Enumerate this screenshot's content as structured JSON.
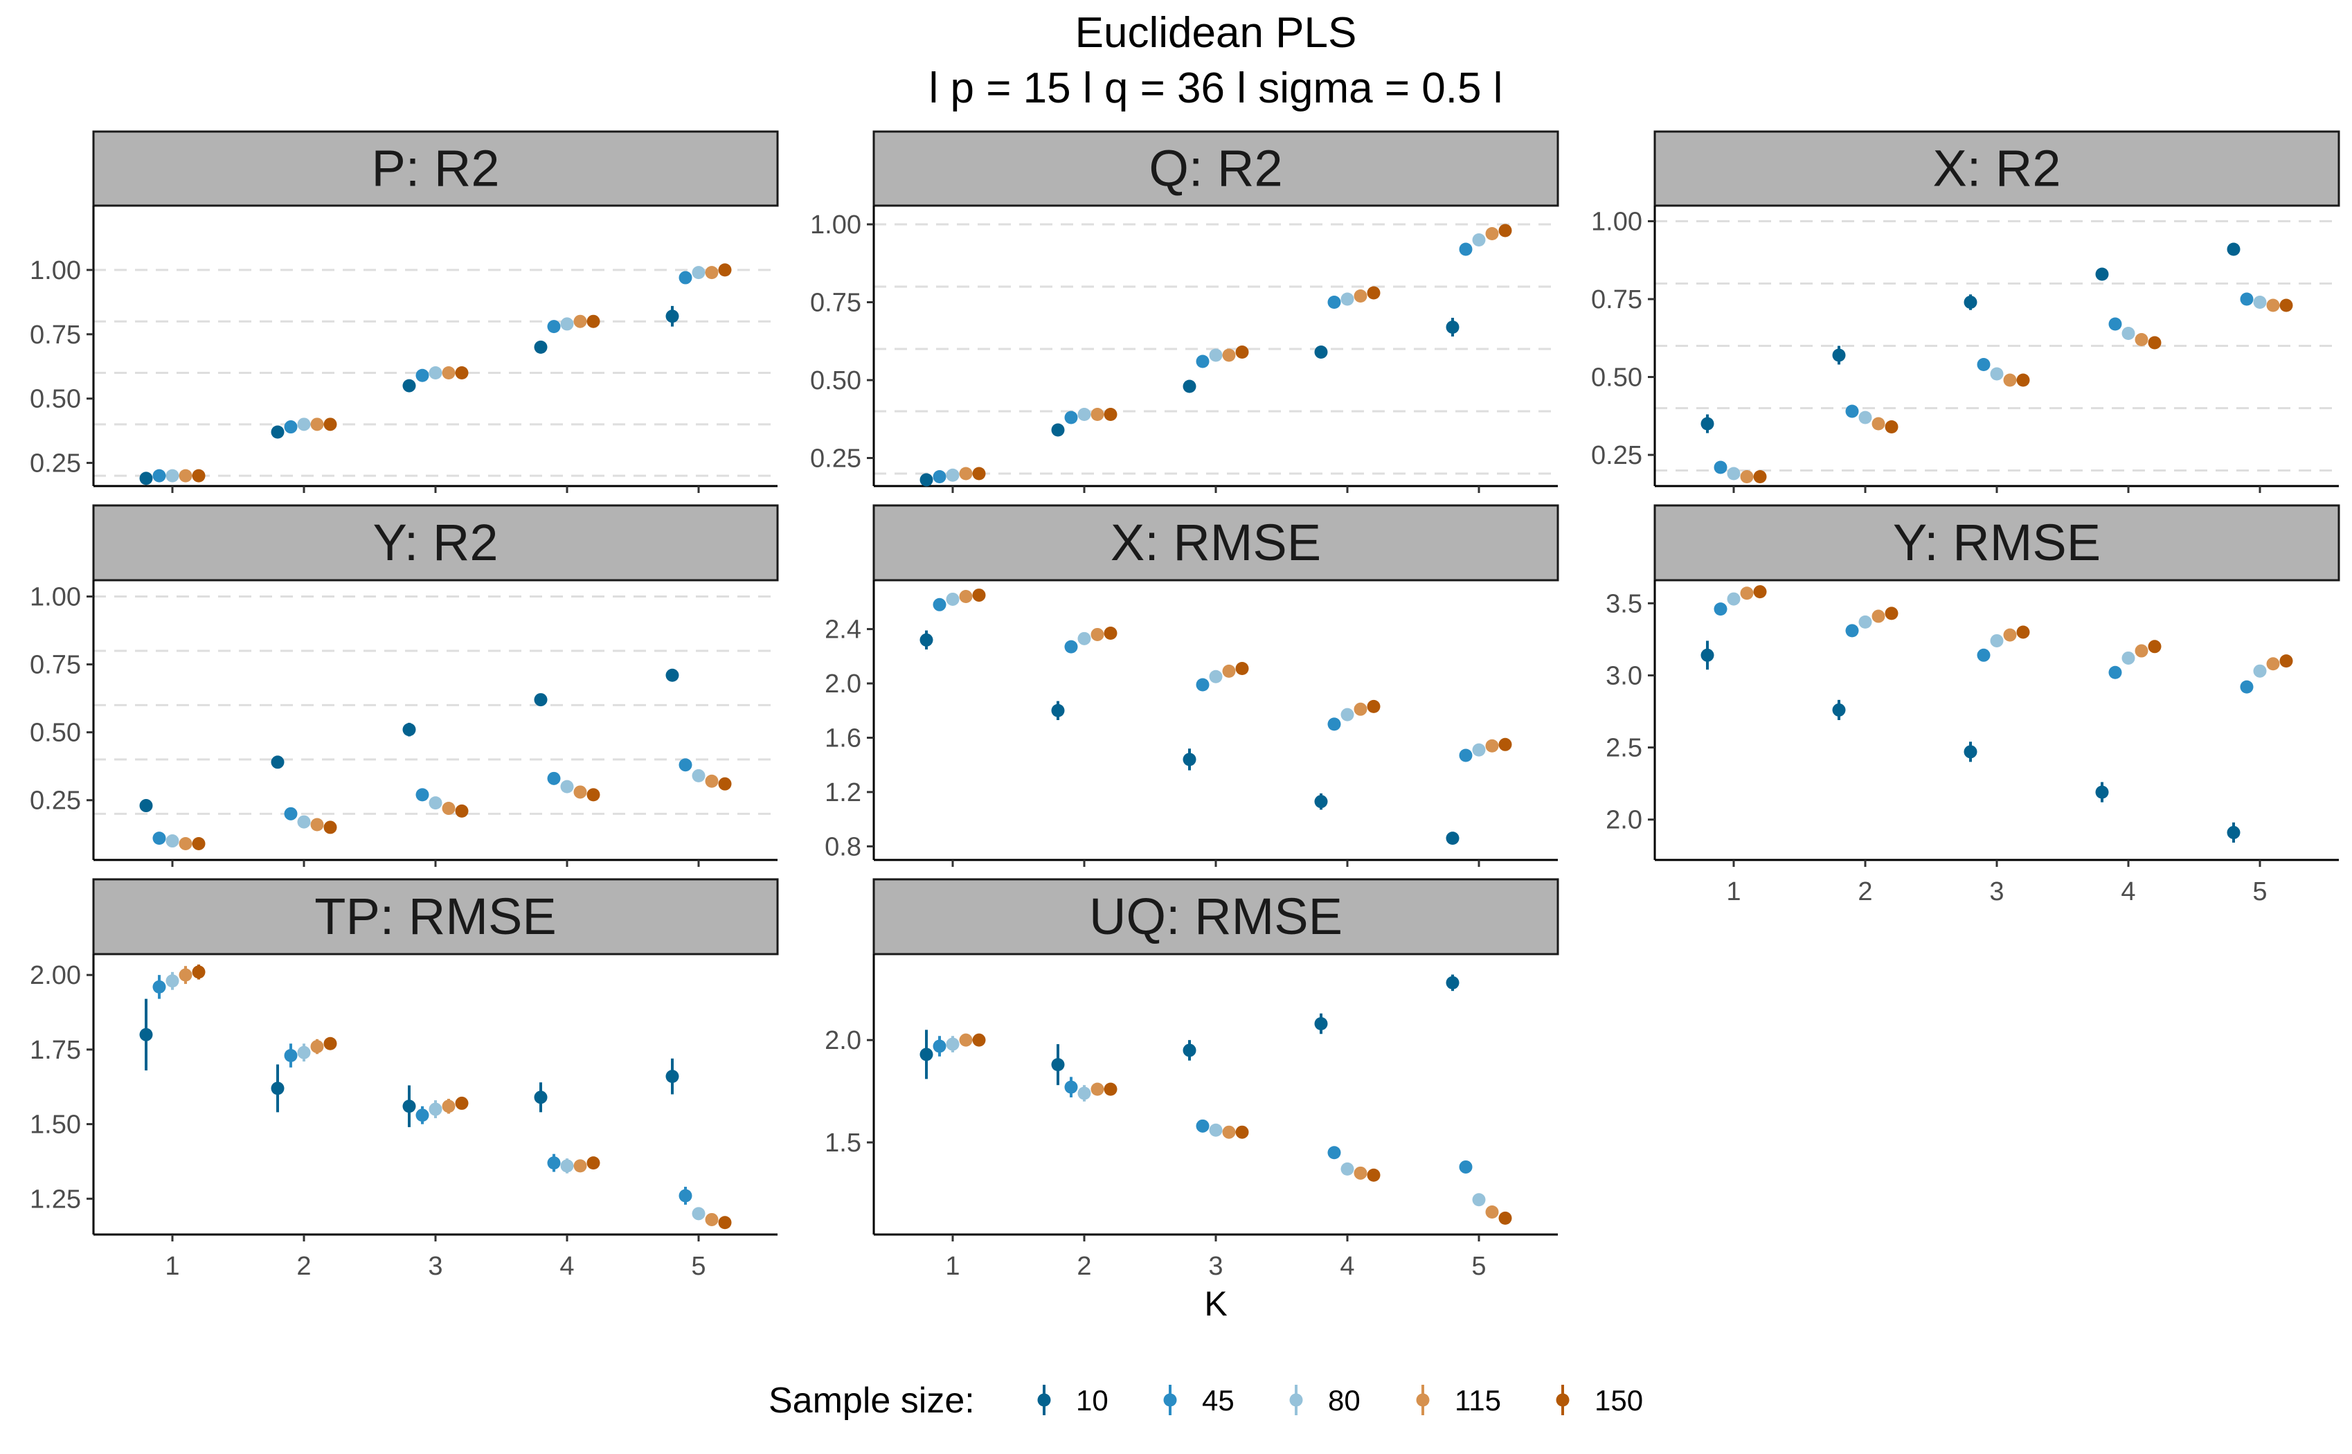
{
  "title": {
    "line1": "Euclidean PLS",
    "line2": "l p = 15 l q = 36 l sigma = 0.5 l"
  },
  "x_axis_label": "K",
  "legend": {
    "title": "Sample size:",
    "items": [
      {
        "label": "10",
        "color": "#03628F"
      },
      {
        "label": "45",
        "color": "#2A8CC4"
      },
      {
        "label": "80",
        "color": "#96C2DA"
      },
      {
        "label": "115",
        "color": "#D6914F"
      },
      {
        "label": "150",
        "color": "#B35806"
      }
    ]
  },
  "chart_data": {
    "type": "scatter",
    "error_bars": true,
    "x_categories": [
      1,
      2,
      3,
      4,
      5
    ],
    "series_names": [
      "10",
      "45",
      "80",
      "115",
      "150"
    ],
    "grid": "dashed horizontal lines at 0.2, 0.4, 0.6, 0.8, 1.0 on R2 panels only",
    "legend_position": "bottom",
    "panels": [
      {
        "title": "P: R2",
        "yticks": [
          "0.25",
          "0.50",
          "0.75",
          "1.00"
        ],
        "ylim": [
          0.16,
          1.25
        ],
        "y": [
          [
            0.19,
            0.2,
            0.2,
            0.2,
            0.2
          ],
          [
            0.37,
            0.39,
            0.4,
            0.4,
            0.4
          ],
          [
            0.55,
            0.59,
            0.6,
            0.6,
            0.6
          ],
          [
            0.7,
            0.78,
            0.79,
            0.8,
            0.8
          ],
          [
            0.82,
            0.97,
            0.99,
            0.99,
            1.0
          ]
        ],
        "err": [
          [
            0.01,
            0,
            0,
            0,
            0
          ],
          [
            0.01,
            0,
            0,
            0,
            0
          ],
          [
            0.01,
            0,
            0,
            0,
            0
          ],
          [
            0.025,
            0,
            0,
            0,
            0
          ],
          [
            0.04,
            0,
            0,
            0,
            0
          ]
        ]
      },
      {
        "title": "Q: R2",
        "yticks": [
          "0.25",
          "0.50",
          "0.75",
          "1.00"
        ],
        "ylim": [
          0.16,
          1.06
        ],
        "y": [
          [
            0.18,
            0.19,
            0.195,
            0.2,
            0.2
          ],
          [
            0.34,
            0.38,
            0.39,
            0.39,
            0.39
          ],
          [
            0.48,
            0.56,
            0.58,
            0.58,
            0.59
          ],
          [
            0.59,
            0.75,
            0.76,
            0.77,
            0.78
          ],
          [
            0.67,
            0.92,
            0.95,
            0.97,
            0.98
          ]
        ],
        "err": [
          [
            0.01,
            0,
            0,
            0,
            0
          ],
          [
            0.01,
            0,
            0,
            0,
            0
          ],
          [
            0.01,
            0,
            0,
            0,
            0
          ],
          [
            0.02,
            0,
            0,
            0,
            0
          ],
          [
            0.03,
            0,
            0,
            0,
            0
          ]
        ]
      },
      {
        "title": "X: R2",
        "yticks": [
          "0.25",
          "0.50",
          "0.75",
          "1.00"
        ],
        "ylim": [
          0.15,
          1.05
        ],
        "y": [
          [
            0.35,
            0.21,
            0.19,
            0.18,
            0.18
          ],
          [
            0.57,
            0.39,
            0.37,
            0.35,
            0.34
          ],
          [
            0.74,
            0.54,
            0.51,
            0.49,
            0.49
          ],
          [
            0.83,
            0.67,
            0.64,
            0.62,
            0.61
          ],
          [
            0.91,
            0.75,
            0.74,
            0.73,
            0.73
          ]
        ],
        "err": [
          [
            0.03,
            0,
            0,
            0,
            0
          ],
          [
            0.03,
            0,
            0,
            0,
            0
          ],
          [
            0.025,
            0,
            0,
            0,
            0
          ],
          [
            0.01,
            0,
            0,
            0,
            0
          ],
          [
            0.01,
            0,
            0,
            0,
            0
          ]
        ]
      },
      {
        "title": "Y: R2",
        "yticks": [
          "0.25",
          "0.50",
          "0.75",
          "1.00"
        ],
        "ylim": [
          0.03,
          1.06
        ],
        "y": [
          [
            0.23,
            0.11,
            0.1,
            0.09,
            0.09
          ],
          [
            0.39,
            0.2,
            0.17,
            0.16,
            0.15
          ],
          [
            0.51,
            0.27,
            0.24,
            0.22,
            0.21
          ],
          [
            0.62,
            0.33,
            0.3,
            0.28,
            0.27
          ],
          [
            0.71,
            0.38,
            0.34,
            0.32,
            0.31
          ]
        ],
        "err": [
          [
            0.01,
            0,
            0,
            0,
            0
          ],
          [
            0.02,
            0,
            0,
            0,
            0
          ],
          [
            0.025,
            0,
            0,
            0,
            0
          ],
          [
            0.01,
            0,
            0,
            0,
            0
          ],
          [
            0.01,
            0,
            0,
            0,
            0
          ]
        ]
      },
      {
        "title": "X: RMSE",
        "yticks": [
          "0.8",
          "1.2",
          "1.6",
          "2.0",
          "2.4"
        ],
        "ylim": [
          0.7,
          2.76
        ],
        "y": [
          [
            2.32,
            2.58,
            2.62,
            2.64,
            2.65
          ],
          [
            1.8,
            2.27,
            2.33,
            2.36,
            2.37
          ],
          [
            1.44,
            1.99,
            2.05,
            2.09,
            2.11
          ],
          [
            1.13,
            1.7,
            1.77,
            1.81,
            1.83
          ],
          [
            0.86,
            1.47,
            1.51,
            1.54,
            1.55
          ]
        ],
        "err": [
          [
            0.07,
            0,
            0,
            0,
            0
          ],
          [
            0.07,
            0,
            0,
            0,
            0
          ],
          [
            0.08,
            0,
            0,
            0,
            0
          ],
          [
            0.06,
            0,
            0,
            0,
            0
          ],
          [
            0.04,
            0,
            0,
            0,
            0
          ]
        ]
      },
      {
        "title": "Y: RMSE",
        "yticks": [
          "2.0",
          "2.5",
          "3.0",
          "3.5"
        ],
        "ylim": [
          1.72,
          3.66
        ],
        "y": [
          [
            3.14,
            3.46,
            3.53,
            3.57,
            3.58
          ],
          [
            2.76,
            3.31,
            3.37,
            3.41,
            3.43
          ],
          [
            2.47,
            3.14,
            3.24,
            3.28,
            3.3
          ],
          [
            2.19,
            3.02,
            3.12,
            3.17,
            3.2
          ],
          [
            1.91,
            2.92,
            3.03,
            3.08,
            3.1
          ]
        ],
        "err": [
          [
            0.1,
            0,
            0,
            0,
            0
          ],
          [
            0.07,
            0,
            0,
            0,
            0
          ],
          [
            0.07,
            0,
            0,
            0,
            0
          ],
          [
            0.07,
            0,
            0,
            0,
            0
          ],
          [
            0.07,
            0,
            0,
            0,
            0
          ]
        ]
      },
      {
        "title": "TP: RMSE",
        "yticks": [
          "1.25",
          "1.50",
          "1.75",
          "2.00"
        ],
        "ylim": [
          1.13,
          2.07
        ],
        "y": [
          [
            1.8,
            1.96,
            1.98,
            2.0,
            2.01
          ],
          [
            1.62,
            1.73,
            1.74,
            1.76,
            1.77
          ],
          [
            1.56,
            1.53,
            1.55,
            1.56,
            1.57
          ],
          [
            1.59,
            1.37,
            1.36,
            1.36,
            1.37
          ],
          [
            1.66,
            1.26,
            1.2,
            1.18,
            1.17
          ]
        ],
        "err": [
          [
            0.12,
            0.04,
            0.03,
            0.03,
            0.025
          ],
          [
            0.08,
            0.04,
            0.03,
            0.025,
            0.02
          ],
          [
            0.07,
            0.03,
            0.03,
            0.025,
            0.02
          ],
          [
            0.05,
            0.03,
            0.025,
            0.02,
            0.015
          ],
          [
            0.06,
            0.03,
            0.02,
            0.01,
            0.01
          ]
        ]
      },
      {
        "title": "UQ: RMSE",
        "yticks": [
          "1.5",
          "2.0"
        ],
        "ylim": [
          1.05,
          2.42
        ],
        "y": [
          [
            1.93,
            1.97,
            1.98,
            2.0,
            2.0
          ],
          [
            1.88,
            1.77,
            1.74,
            1.76,
            1.76
          ],
          [
            1.95,
            1.58,
            1.56,
            1.55,
            1.55
          ],
          [
            2.08,
            1.45,
            1.37,
            1.35,
            1.34
          ],
          [
            2.28,
            1.38,
            1.22,
            1.16,
            1.13
          ]
        ],
        "err": [
          [
            0.12,
            0.05,
            0.04,
            0.03,
            0.03
          ],
          [
            0.1,
            0.05,
            0.04,
            0.03,
            0.03
          ],
          [
            0.05,
            0.02,
            0.02,
            0.015,
            0.015
          ],
          [
            0.05,
            0.02,
            0.02,
            0.015,
            0.015
          ],
          [
            0.04,
            0.015,
            0.015,
            0.01,
            0.01
          ]
        ]
      }
    ]
  }
}
